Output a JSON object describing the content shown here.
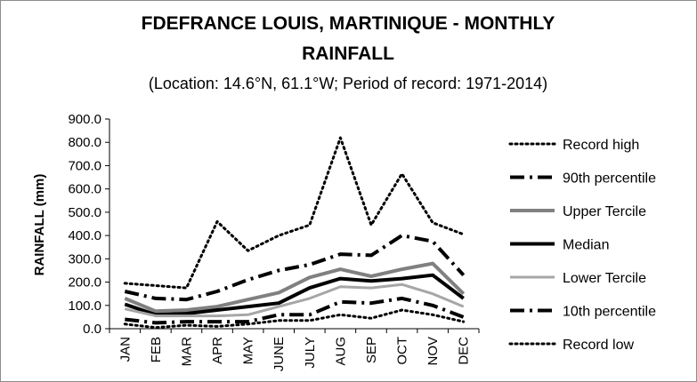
{
  "chart_data": {
    "type": "line",
    "title_line1": "FDEFRANCE LOUIS, MARTINIQUE - MONTHLY",
    "title_line2": "RAINFALL",
    "subtitle": "(Location: 14.6°N, 61.1°W; Period of record: 1971-2014)",
    "ylabel": "RAINFALL (mm)",
    "xlabel": "",
    "ylim": [
      0,
      900
    ],
    "yticks": [
      "0.0",
      "100.0",
      "200.0",
      "300.0",
      "400.0",
      "500.0",
      "600.0",
      "700.0",
      "800.0",
      "900.0"
    ],
    "categories": [
      "JAN",
      "FEB",
      "MAR",
      "APR",
      "MAY",
      "JUNE",
      "JULY",
      "AUG",
      "SEP",
      "OCT",
      "NOV",
      "DEC"
    ],
    "legend_position": "right",
    "grid": false,
    "series": [
      {
        "name": "Record high",
        "color": "#000000",
        "style": "dotted",
        "width": 3,
        "values": [
          195,
          185,
          175,
          460,
          335,
          400,
          445,
          820,
          445,
          665,
          455,
          405
        ]
      },
      {
        "name": "90th percentile",
        "color": "#000000",
        "style": "dashdot",
        "width": 4,
        "values": [
          160,
          130,
          125,
          160,
          210,
          250,
          275,
          320,
          315,
          400,
          375,
          230
        ]
      },
      {
        "name": "Upper Tercile",
        "color": "#808080",
        "style": "solid",
        "width": 4,
        "values": [
          130,
          75,
          80,
          95,
          125,
          155,
          220,
          255,
          225,
          255,
          280,
          150
        ]
      },
      {
        "name": "Median",
        "color": "#000000",
        "style": "solid",
        "width": 4,
        "values": [
          105,
          60,
          65,
          80,
          95,
          110,
          175,
          215,
          205,
          215,
          230,
          130
        ]
      },
      {
        "name": "Lower Tercile",
        "color": "#a6a6a6",
        "style": "solid",
        "width": 3,
        "values": [
          85,
          55,
          55,
          55,
          60,
          95,
          130,
          180,
          175,
          190,
          150,
          95
        ]
      },
      {
        "name": "10th percentile",
        "color": "#000000",
        "style": "dashdot",
        "width": 4,
        "values": [
          40,
          25,
          30,
          30,
          30,
          60,
          60,
          115,
          110,
          130,
          100,
          50
        ]
      },
      {
        "name": "Record low",
        "color": "#000000",
        "style": "dotted",
        "width": 3,
        "values": [
          20,
          5,
          15,
          10,
          20,
          35,
          35,
          60,
          45,
          80,
          60,
          30
        ]
      }
    ]
  }
}
